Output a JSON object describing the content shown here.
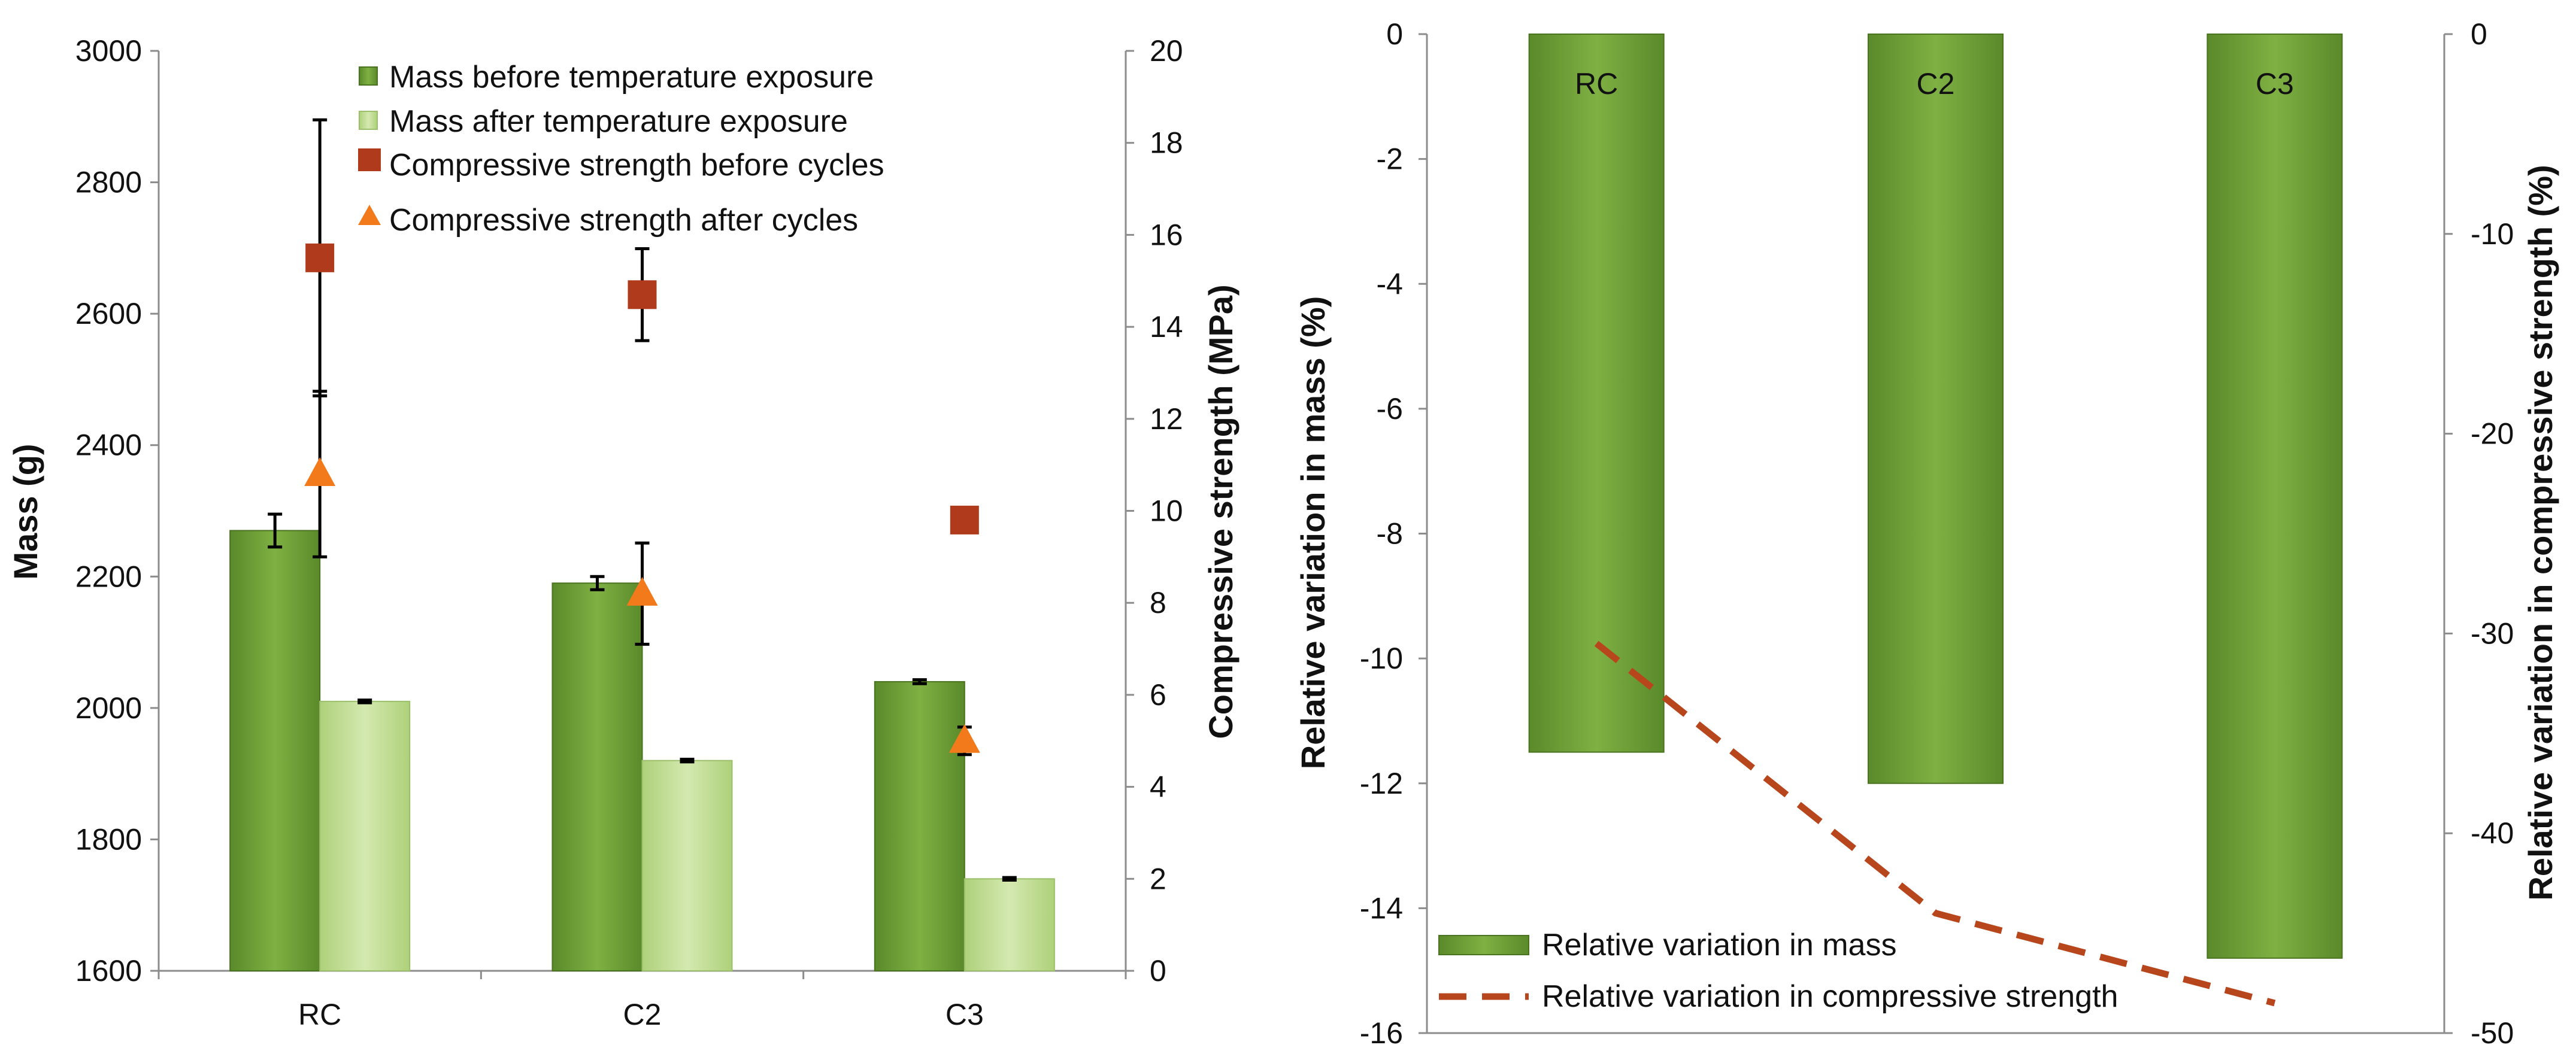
{
  "colors": {
    "bar_before_dark": "#5a8a2a",
    "bar_before_light": "#7fb043",
    "bar_after_dark": "#aed17a",
    "bar_after_light": "#d4e9b0",
    "square": "#b03a1c",
    "triangle": "#f27a1a",
    "dash_line": "#b8461d"
  },
  "chart_data": [
    {
      "type": "bar",
      "categories": [
        "RC",
        "C2",
        "C3"
      ],
      "ylabel": "Mass (g)",
      "y2label": "Compressive strength (MPa)",
      "ylim": [
        1600,
        3000
      ],
      "y_ticks": [
        "1600",
        "1800",
        "2000",
        "2200",
        "2400",
        "2600",
        "2800",
        "3000"
      ],
      "y2lim": [
        0,
        20
      ],
      "y2_ticks": [
        "0",
        "2",
        "4",
        "6",
        "8",
        "10",
        "12",
        "14",
        "16",
        "18",
        "20"
      ],
      "series": [
        {
          "name": "Mass before temperature exposure",
          "kind": "bar",
          "axis": "left",
          "values": [
            2270,
            2190,
            2040
          ],
          "error": [
            25,
            10,
            3
          ]
        },
        {
          "name": "Mass after temperature exposure",
          "kind": "bar",
          "axis": "left",
          "values": [
            2010,
            1920,
            1740
          ],
          "error": [
            2,
            2,
            2
          ]
        },
        {
          "name": "Compressive strength before cycles",
          "kind": "square",
          "axis": "right",
          "values": [
            15.5,
            14.7,
            9.8
          ],
          "error": [
            3.0,
            1.0,
            0
          ]
        },
        {
          "name": "Compressive strength after cycles",
          "kind": "triangle",
          "axis": "right",
          "values": [
            10.8,
            8.2,
            5.0
          ],
          "error": [
            1.8,
            1.1,
            0.3
          ]
        }
      ],
      "legend": [
        "Mass before temperature exposure",
        "Mass after temperature exposure",
        "Compressive strength  before cycles",
        "Compressive strength  after cycles"
      ],
      "legend_position": "top-center",
      "x_tick_labels": [
        "RC",
        "C2",
        "C3"
      ]
    },
    {
      "type": "bar",
      "categories": [
        "RC",
        "C2",
        "C3"
      ],
      "ylabel": "Relative  variation  in mass  (%)",
      "y2label": "Relative variation in compressive strength (%)",
      "ylim": [
        -16,
        0
      ],
      "y_ticks": [
        "0",
        "-2",
        "-4",
        "-6",
        "-8",
        "-10",
        "-12",
        "-14",
        "-16"
      ],
      "y2lim": [
        -50,
        0
      ],
      "y2_ticks": [
        "0",
        "-10",
        "-20",
        "-30",
        "-40",
        "-50"
      ],
      "series": [
        {
          "name": "Relative variation in mass",
          "kind": "bar",
          "axis": "left",
          "values": [
            -11.5,
            -12.0,
            -14.8
          ]
        },
        {
          "name": "Relative variation in compressive strength",
          "kind": "dashed-line",
          "axis": "right",
          "values": [
            -30.5,
            -44.0,
            -48.5
          ]
        }
      ],
      "legend": [
        "Relative variation in mass",
        "Relative variation in compressive strength"
      ],
      "legend_position": "bottom-left"
    }
  ]
}
